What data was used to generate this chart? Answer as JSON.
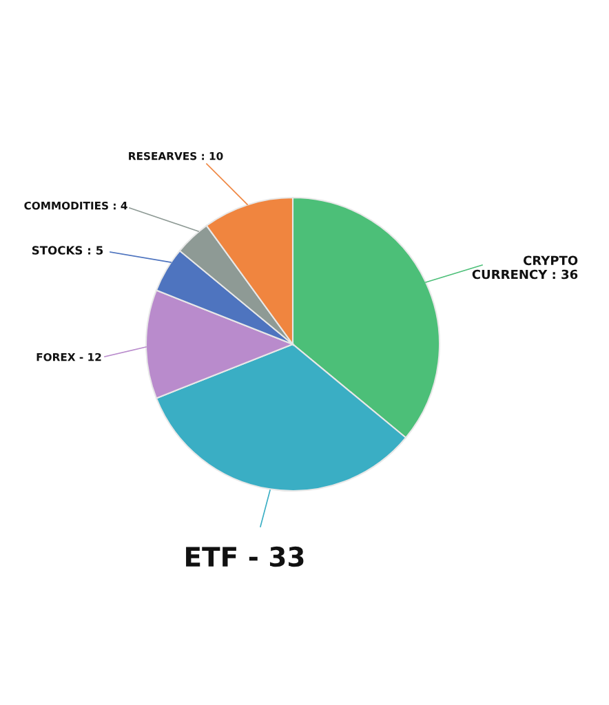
{
  "chart_data": {
    "type": "pie",
    "categories": [
      "CRYPTO\nCURRENCY : 36",
      "ETF - 33",
      "FOREX - 12",
      "STOCKS : 5",
      "COMMODITIES : 4",
      "RESEARVES : 10"
    ],
    "values": [
      36,
      33,
      12,
      5,
      4,
      10
    ],
    "colors": [
      "#4cbf78",
      "#3aaec4",
      "#b98bcc",
      "#4e74bf",
      "#8e9a95",
      "#f0853f"
    ]
  }
}
